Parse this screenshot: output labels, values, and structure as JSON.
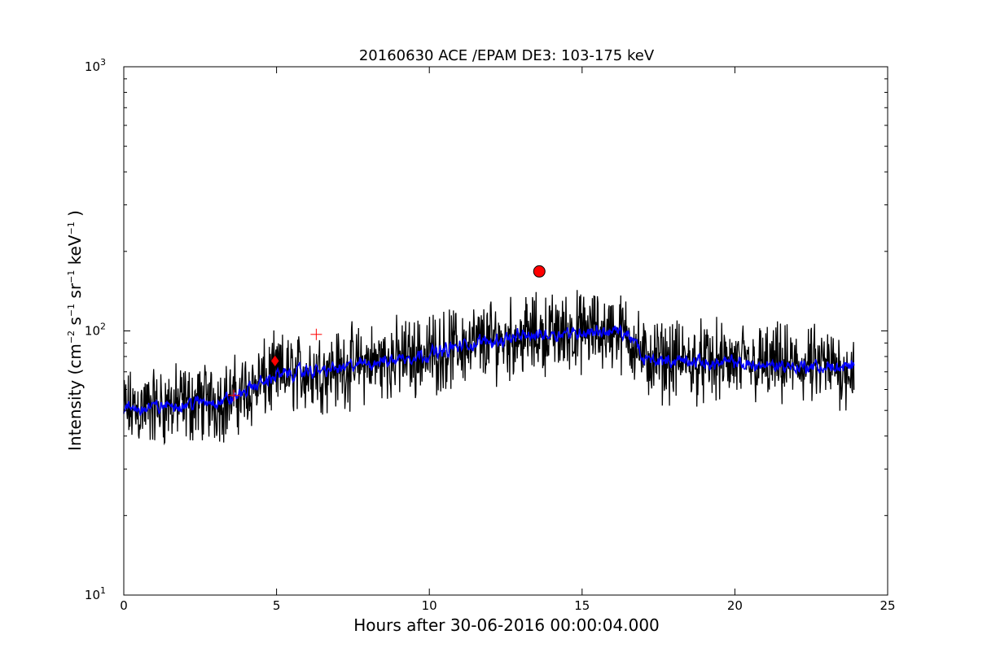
{
  "chart_data": {
    "type": "line",
    "title": "20160630 ACE /EPAM DE3: 103-175 keV",
    "xlabel": "Hours after 30-06-2016 00:00:04.000",
    "ylabel": {
      "prefix": "Intensity (cm",
      "exp1": "−2",
      "mid1": " s",
      "exp2": "−1",
      "mid2": " sr",
      "exp3": "−1",
      "mid3": " keV",
      "exp4": "−1",
      "suffix": " )"
    },
    "xlim": [
      0,
      25
    ],
    "ylim": [
      10,
      1000
    ],
    "yscale": "log",
    "grid": false,
    "x_ticks": [
      0,
      5,
      10,
      15,
      20,
      25
    ],
    "x_tick_labels": [
      "0",
      "5",
      "10",
      "15",
      "20",
      "25"
    ],
    "y_ticks": [
      {
        "base": "10",
        "exp": "1",
        "value": 10
      },
      {
        "base": "10",
        "exp": "2",
        "value": 100
      },
      {
        "base": "10",
        "exp": "3",
        "value": 1000
      }
    ],
    "series": [
      {
        "style": "raw",
        "color": "#000000",
        "x_range": [
          0.0,
          23.9
        ],
        "trend": [
          [
            0.0,
            50
          ],
          [
            3.5,
            55
          ],
          [
            5.0,
            68
          ],
          [
            7.0,
            72
          ],
          [
            10.0,
            82
          ],
          [
            12.0,
            92
          ],
          [
            14.0,
            98
          ],
          [
            16.0,
            100
          ],
          [
            16.6,
            95
          ],
          [
            17.0,
            78
          ],
          [
            20.0,
            75
          ],
          [
            23.9,
            72
          ]
        ]
      },
      {
        "style": "smoothed",
        "color": "#0000ff",
        "x_range": [
          0.0,
          23.9
        ],
        "trend": [
          [
            0.0,
            50
          ],
          [
            3.5,
            55
          ],
          [
            5.0,
            68
          ],
          [
            7.0,
            72
          ],
          [
            10.0,
            82
          ],
          [
            12.0,
            92
          ],
          [
            14.0,
            98
          ],
          [
            16.0,
            100
          ],
          [
            16.6,
            95
          ],
          [
            17.0,
            78
          ],
          [
            20.0,
            75
          ],
          [
            23.9,
            72
          ]
        ]
      }
    ],
    "markers": [
      {
        "shape": "circle",
        "color": "#ff0000",
        "x": 13.6,
        "y": 168
      },
      {
        "shape": "diamond",
        "color": "#ff0000",
        "x": 4.95,
        "y": 77
      },
      {
        "shape": "plus",
        "color": "#ff0000",
        "x": 3.6,
        "y": 57
      },
      {
        "shape": "plus",
        "color": "#ff0000",
        "x": 6.3,
        "y": 97
      }
    ]
  }
}
